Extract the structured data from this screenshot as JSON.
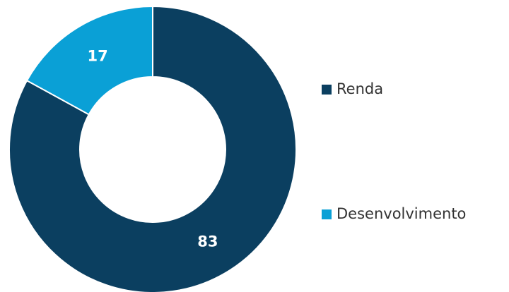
{
  "chart_data": {
    "type": "pie",
    "donut": true,
    "categories": [
      "Renda",
      "Desenvolvimento"
    ],
    "values": [
      83,
      17
    ],
    "colors": [
      "#0b3f60",
      "#0aa0d6"
    ],
    "legend": "right"
  }
}
